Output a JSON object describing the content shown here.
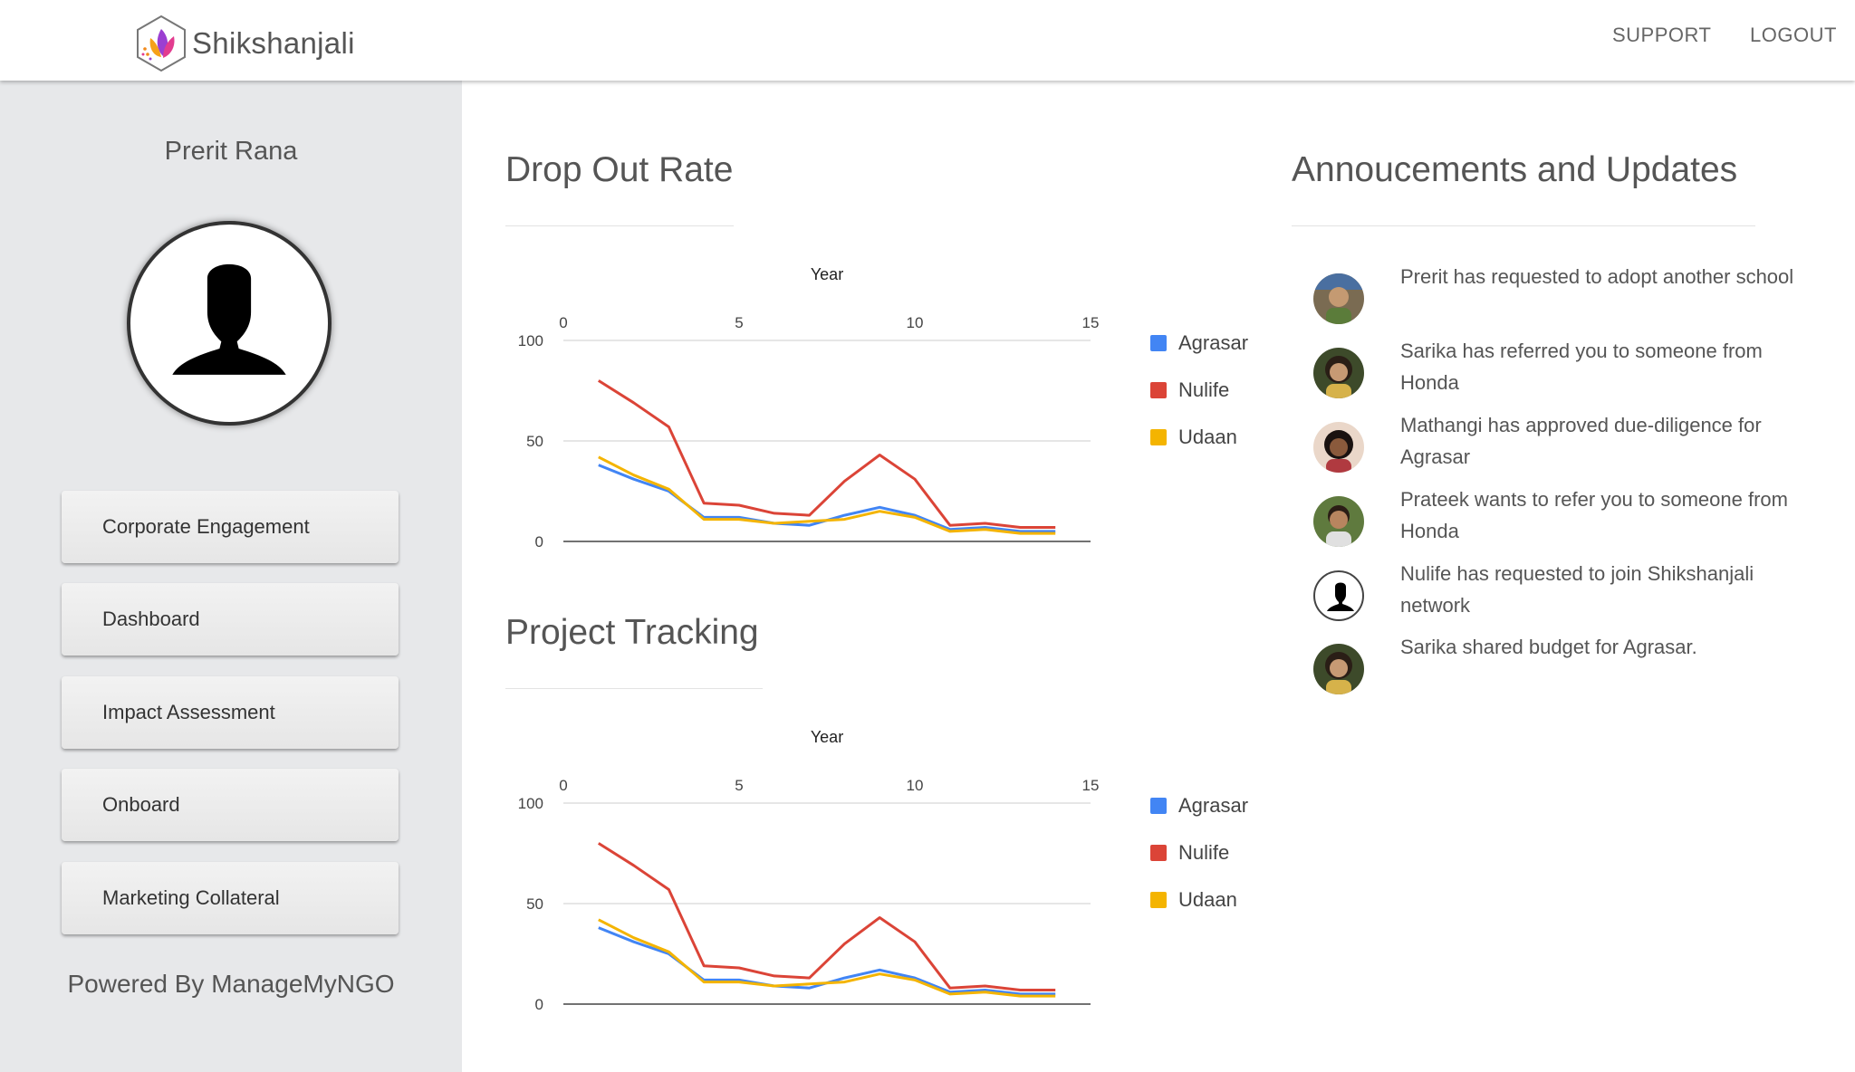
{
  "app": {
    "name": "Shikshanjali"
  },
  "nav": {
    "support": "SUPPORT",
    "logout": "LOGOUT"
  },
  "sidebar": {
    "user_name": "Prerit Rana",
    "items": [
      {
        "label": "Corporate Engagement"
      },
      {
        "label": "Dashboard"
      },
      {
        "label": "Impact Assessment"
      },
      {
        "label": "Onboard"
      },
      {
        "label": "Marketing Collateral"
      }
    ],
    "footer": "Powered By ManageMyNGO"
  },
  "announcements": {
    "title": "Annoucements and Updates",
    "items": [
      {
        "text": "Prerit has requested to adopt another school",
        "avatar": "photo-avatar"
      },
      {
        "text": "Sarika has referred you to someone from Honda",
        "avatar": "photo-avatar"
      },
      {
        "text": "Mathangi has approved due-diligence for Agrasar",
        "avatar": "photo-avatar"
      },
      {
        "text": "Prateek wants to refer you to someone from Honda",
        "avatar": "photo-avatar"
      },
      {
        "text": "Nulife has requested to join Shikshanjali network",
        "avatar": "default-user-icon"
      },
      {
        "text": "Sarika shared budget for Agrasar.",
        "avatar": "photo-avatar"
      }
    ]
  },
  "chart_data": [
    {
      "type": "line",
      "title": "Drop Out Rate",
      "xlabel": "Year",
      "ylabel": "",
      "xlim": [
        0,
        15
      ],
      "ylim": [
        0,
        100
      ],
      "xticks": [
        "0",
        "5",
        "10",
        "15"
      ],
      "yticks": [
        "0",
        "50",
        "100"
      ],
      "legend": "right",
      "x": [
        1,
        2,
        3,
        4,
        5,
        6,
        7,
        8,
        9,
        10,
        11,
        12,
        13,
        14
      ],
      "series": [
        {
          "name": "Agrasar",
          "color": "#4285f4",
          "values": [
            38,
            31,
            25,
            12,
            12,
            9,
            8,
            13,
            17,
            13,
            6,
            7,
            5,
            5
          ]
        },
        {
          "name": "Nulife",
          "color": "#db4437",
          "values": [
            80,
            69,
            57,
            19,
            18,
            14,
            13,
            30,
            43,
            31,
            8,
            9,
            7,
            7
          ]
        },
        {
          "name": "Udaan",
          "color": "#f4b400",
          "values": [
            42,
            33,
            26,
            11,
            11,
            9,
            10,
            11,
            15,
            12,
            5,
            6,
            4,
            4
          ]
        }
      ]
    },
    {
      "type": "line",
      "title": "Project Tracking",
      "xlabel": "Year",
      "ylabel": "",
      "xlim": [
        0,
        15
      ],
      "ylim": [
        0,
        100
      ],
      "xticks": [
        "0",
        "5",
        "10",
        "15"
      ],
      "yticks": [
        "0",
        "50",
        "100"
      ],
      "legend": "right",
      "x": [
        1,
        2,
        3,
        4,
        5,
        6,
        7,
        8,
        9,
        10,
        11,
        12,
        13,
        14
      ],
      "series": [
        {
          "name": "Agrasar",
          "color": "#4285f4",
          "values": [
            38,
            31,
            25,
            12,
            12,
            9,
            8,
            13,
            17,
            13,
            6,
            7,
            5,
            5
          ]
        },
        {
          "name": "Nulife",
          "color": "#db4437",
          "values": [
            80,
            69,
            57,
            19,
            18,
            14,
            13,
            30,
            43,
            31,
            8,
            9,
            7,
            7
          ]
        },
        {
          "name": "Udaan",
          "color": "#f4b400",
          "values": [
            42,
            33,
            26,
            11,
            11,
            9,
            10,
            11,
            15,
            12,
            5,
            6,
            4,
            4
          ]
        }
      ]
    }
  ]
}
